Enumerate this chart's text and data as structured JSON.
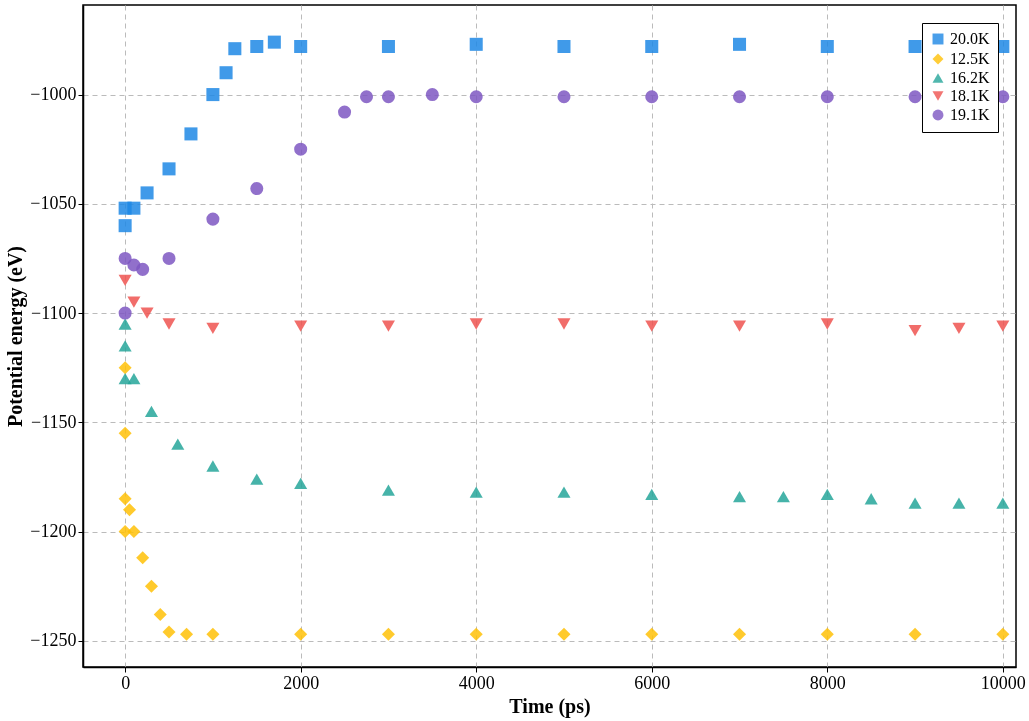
{
  "chart_data": {
    "type": "scatter",
    "xlabel": "Time (ps)",
    "ylabel": "Potential energy (eV)",
    "xlim": [
      -480,
      10150
    ],
    "ylim": [
      -1262,
      -959
    ],
    "xticks": [
      0,
      2000,
      4000,
      6000,
      8000,
      10000
    ],
    "yticks": [
      -1250,
      -1200,
      -1150,
      -1100,
      -1050,
      -1000
    ],
    "grid": true,
    "legend": "top right",
    "series": [
      {
        "name": "20.0K",
        "color": "#1e88e5",
        "marker": "square",
        "x": [
          0,
          0,
          100,
          250,
          500,
          750,
          1000,
          1150,
          1250,
          1500,
          1700,
          2000,
          3000,
          4000,
          5000,
          6000,
          7000,
          8000,
          9000,
          10000
        ],
        "values": [
          -1060,
          -1052,
          -1052,
          -1045,
          -1034,
          -1018,
          -1000,
          -990,
          -979,
          -978,
          -976,
          -978,
          -978,
          -977,
          -978,
          -978,
          -977,
          -978,
          -978,
          -978
        ]
      },
      {
        "name": "12.5K",
        "color": "#ffc107",
        "marker": "diamond",
        "x": [
          0,
          0,
          0,
          0,
          50,
          100,
          200,
          300,
          400,
          500,
          700,
          1000,
          2000,
          3000,
          4000,
          5000,
          6000,
          7000,
          8000,
          9000,
          10000
        ],
        "values": [
          -1125,
          -1155,
          -1185,
          -1200,
          -1190,
          -1200,
          -1212,
          -1225,
          -1238,
          -1246,
          -1247,
          -1247,
          -1247,
          -1247,
          -1247,
          -1247,
          -1247,
          -1247,
          -1247,
          -1247,
          -1247
        ]
      },
      {
        "name": "16.2K",
        "color": "#26a69a",
        "marker": "triangle",
        "x": [
          0,
          0,
          0,
          100,
          300,
          600,
          1000,
          1500,
          2000,
          3000,
          4000,
          5000,
          6000,
          7000,
          7500,
          8000,
          8500,
          9000,
          9500,
          10000
        ],
        "values": [
          -1105,
          -1115,
          -1130,
          -1130,
          -1145,
          -1160,
          -1170,
          -1176,
          -1178,
          -1181,
          -1182,
          -1182,
          -1183,
          -1184,
          -1184,
          -1183,
          -1185,
          -1187,
          -1187,
          -1187
        ]
      },
      {
        "name": "18.1K",
        "color": "#ef5350",
        "marker": "triangle-down",
        "x": [
          0,
          100,
          250,
          500,
          1000,
          2000,
          3000,
          4000,
          5000,
          6000,
          7000,
          8000,
          9000,
          9500,
          10000
        ],
        "values": [
          -1085,
          -1095,
          -1100,
          -1105,
          -1107,
          -1106,
          -1106,
          -1105,
          -1105,
          -1106,
          -1106,
          -1105,
          -1108,
          -1107,
          -1106
        ]
      },
      {
        "name": "19.1K",
        "color": "#7e57c2",
        "marker": "circle",
        "x": [
          0,
          0,
          100,
          200,
          500,
          1000,
          1500,
          2000,
          2500,
          2750,
          3000,
          3500,
          4000,
          5000,
          6000,
          7000,
          8000,
          9000,
          10000
        ],
        "values": [
          -1100,
          -1075,
          -1078,
          -1080,
          -1075,
          -1057,
          -1043,
          -1025,
          -1008,
          -1001,
          -1001,
          -1000,
          -1001,
          -1001,
          -1001,
          -1001,
          -1001,
          -1001,
          -1001
        ]
      }
    ]
  }
}
